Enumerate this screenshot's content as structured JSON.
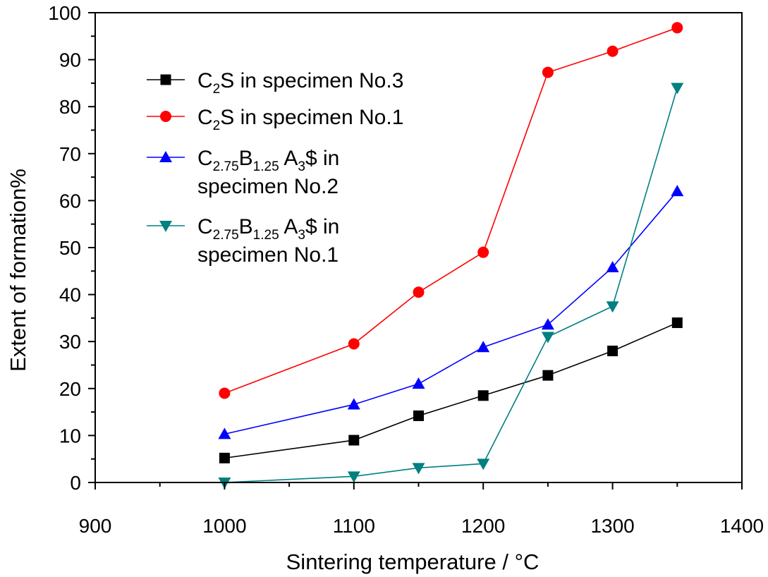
{
  "chart_data": {
    "type": "line",
    "title": "",
    "xlabel": "Sintering temperature / °C",
    "ylabel": "Extent of formation%",
    "xlim": [
      900,
      1400
    ],
    "ylim": [
      0,
      100
    ],
    "x_ticks": [
      "900",
      "1000",
      "1100",
      "1200",
      "1300",
      "1400"
    ],
    "y_ticks": [
      "0",
      "10",
      "20",
      "30",
      "40",
      "50",
      "60",
      "70",
      "80",
      "90",
      "100"
    ],
    "grid": false,
    "legend_position": "top-left",
    "x": [
      1000,
      1100,
      1150,
      1200,
      1250,
      1300,
      1350
    ],
    "series": [
      {
        "legend": [
          {
            "base": "C",
            "sub": "2",
            "base2": "S in specimen No.3"
          }
        ],
        "color": "#000000",
        "marker": "square",
        "values": [
          5.2,
          9.0,
          14.2,
          18.5,
          22.8,
          28.0,
          34.0
        ]
      },
      {
        "legend": [
          {
            "base": "C",
            "sub": "2",
            "base2": "S in specimen No.1"
          }
        ],
        "color": "#ff0000",
        "marker": "circle",
        "values": [
          19.0,
          29.5,
          40.5,
          49.0,
          87.3,
          91.8,
          96.8
        ]
      },
      {
        "legend": [
          {
            "base": "C",
            "sub": "2.75",
            "base2": "B",
            "sub2": "1.25",
            "base3": " A",
            "sub3": "3",
            "base4": "$ in"
          },
          {
            "base": "specimen No.2"
          }
        ],
        "color": "#0000ff",
        "marker": "triangle-up",
        "values": [
          10.3,
          16.6,
          21.0,
          28.8,
          33.6,
          45.8,
          62.0
        ]
      },
      {
        "legend": [
          {
            "base": "C",
            "sub": "2.75",
            "base2": "B",
            "sub2": "1.25",
            "base3": " A",
            "sub3": "3",
            "base4": "$ in"
          },
          {
            "base": "specimen No.1"
          }
        ],
        "color": "#008080",
        "marker": "triangle-down",
        "values": [
          0.0,
          1.3,
          3.1,
          4.0,
          31.0,
          37.5,
          84.0
        ]
      }
    ]
  }
}
